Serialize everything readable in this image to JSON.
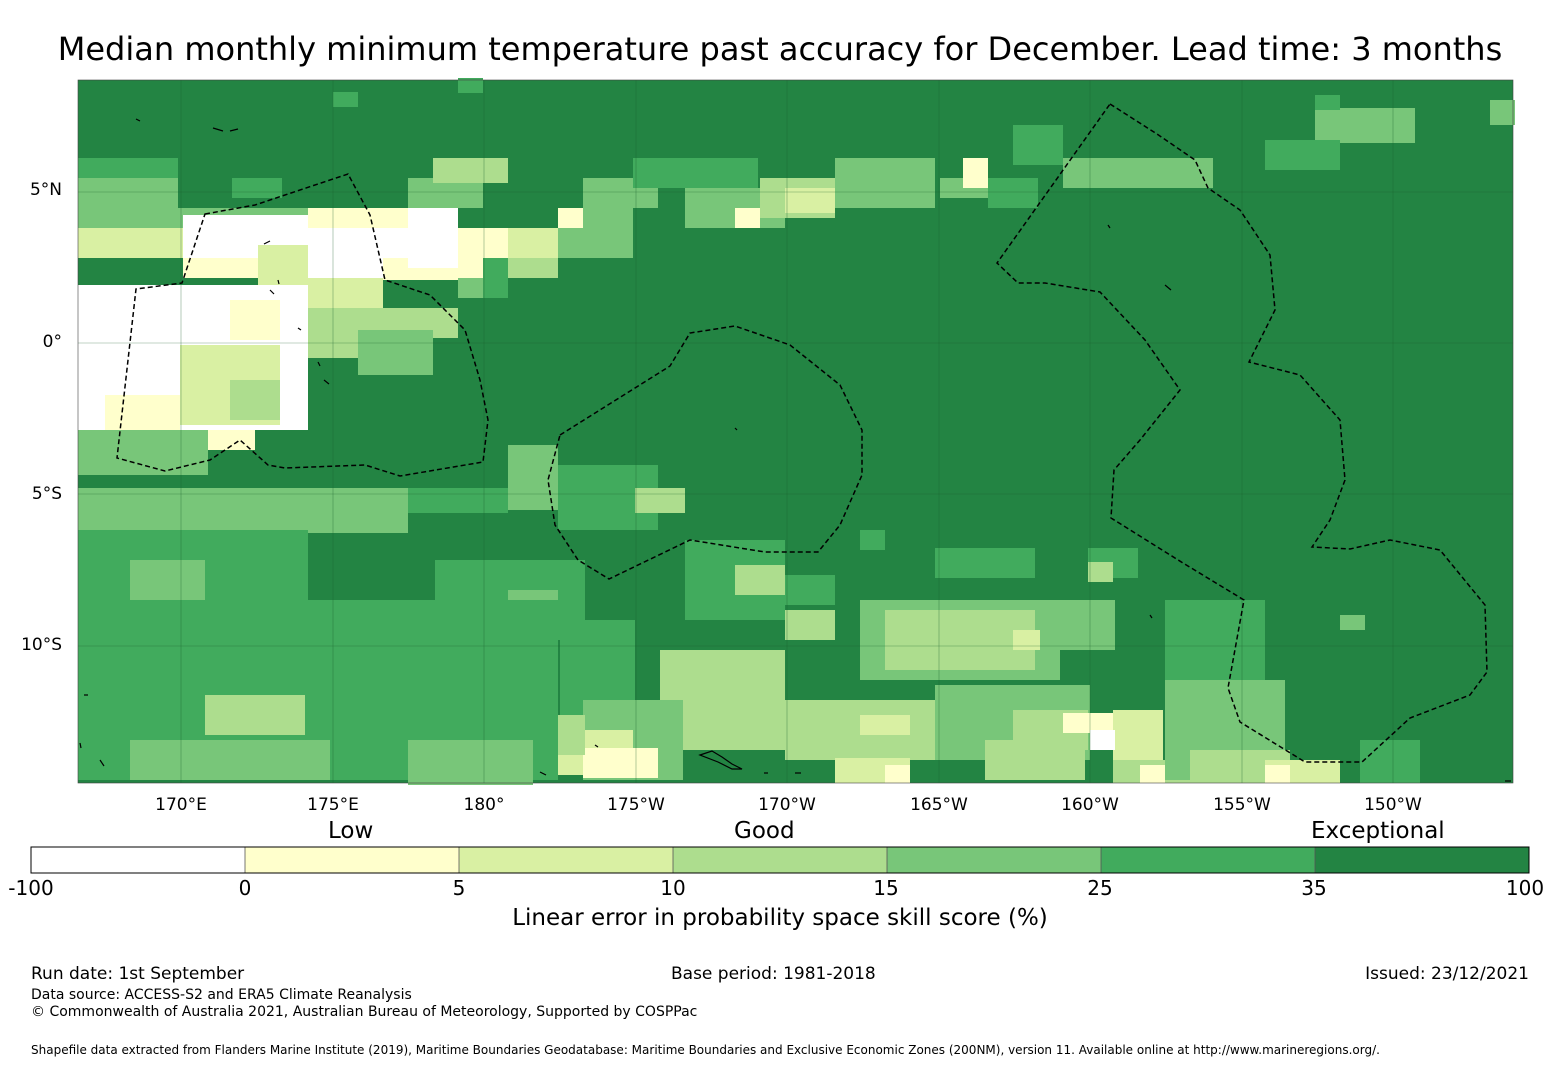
{
  "title": "Median monthly minimum temperature past accuracy for December. Lead time: 3 months",
  "map": {
    "lat_labels": [
      "5°N",
      "0°",
      "5°S",
      "10°S"
    ],
    "lon_labels": [
      "170°E",
      "175°E",
      "180°",
      "175°W",
      "170°W",
      "165°W",
      "160°W",
      "155°W",
      "150°W"
    ]
  },
  "legend": {
    "categories": [
      "Low",
      "Good",
      "Exceptional"
    ],
    "ticks": [
      "-100",
      "0",
      "5",
      "10",
      "15",
      "25",
      "35",
      "100"
    ],
    "colors": [
      "#ffffff",
      "#ffffcc",
      "#d9f0a3",
      "#addd8e",
      "#78c679",
      "#41ab5d",
      "#238443"
    ],
    "title": "Linear error in probability space skill score (%)"
  },
  "footer": {
    "run_date": "Run date: 1st September",
    "base_period": "Base period: 1981-2018",
    "issued": "Issued: 23/12/2021",
    "data_source": "Data source: ACCESS-S2 and ERA5 Climate Reanalysis",
    "copyright": "© Commonwealth of Australia 2021, Australian Bureau of Meteorology, Supported by COSPPac",
    "shapefile": "Shapefile data extracted from Flanders Marine Institute (2019), Maritime Boundaries Geodatabase: Maritime Boundaries and Exclusive Economic Zones (200NM), version 11. Available online at http://www.marineregions.org/."
  }
}
